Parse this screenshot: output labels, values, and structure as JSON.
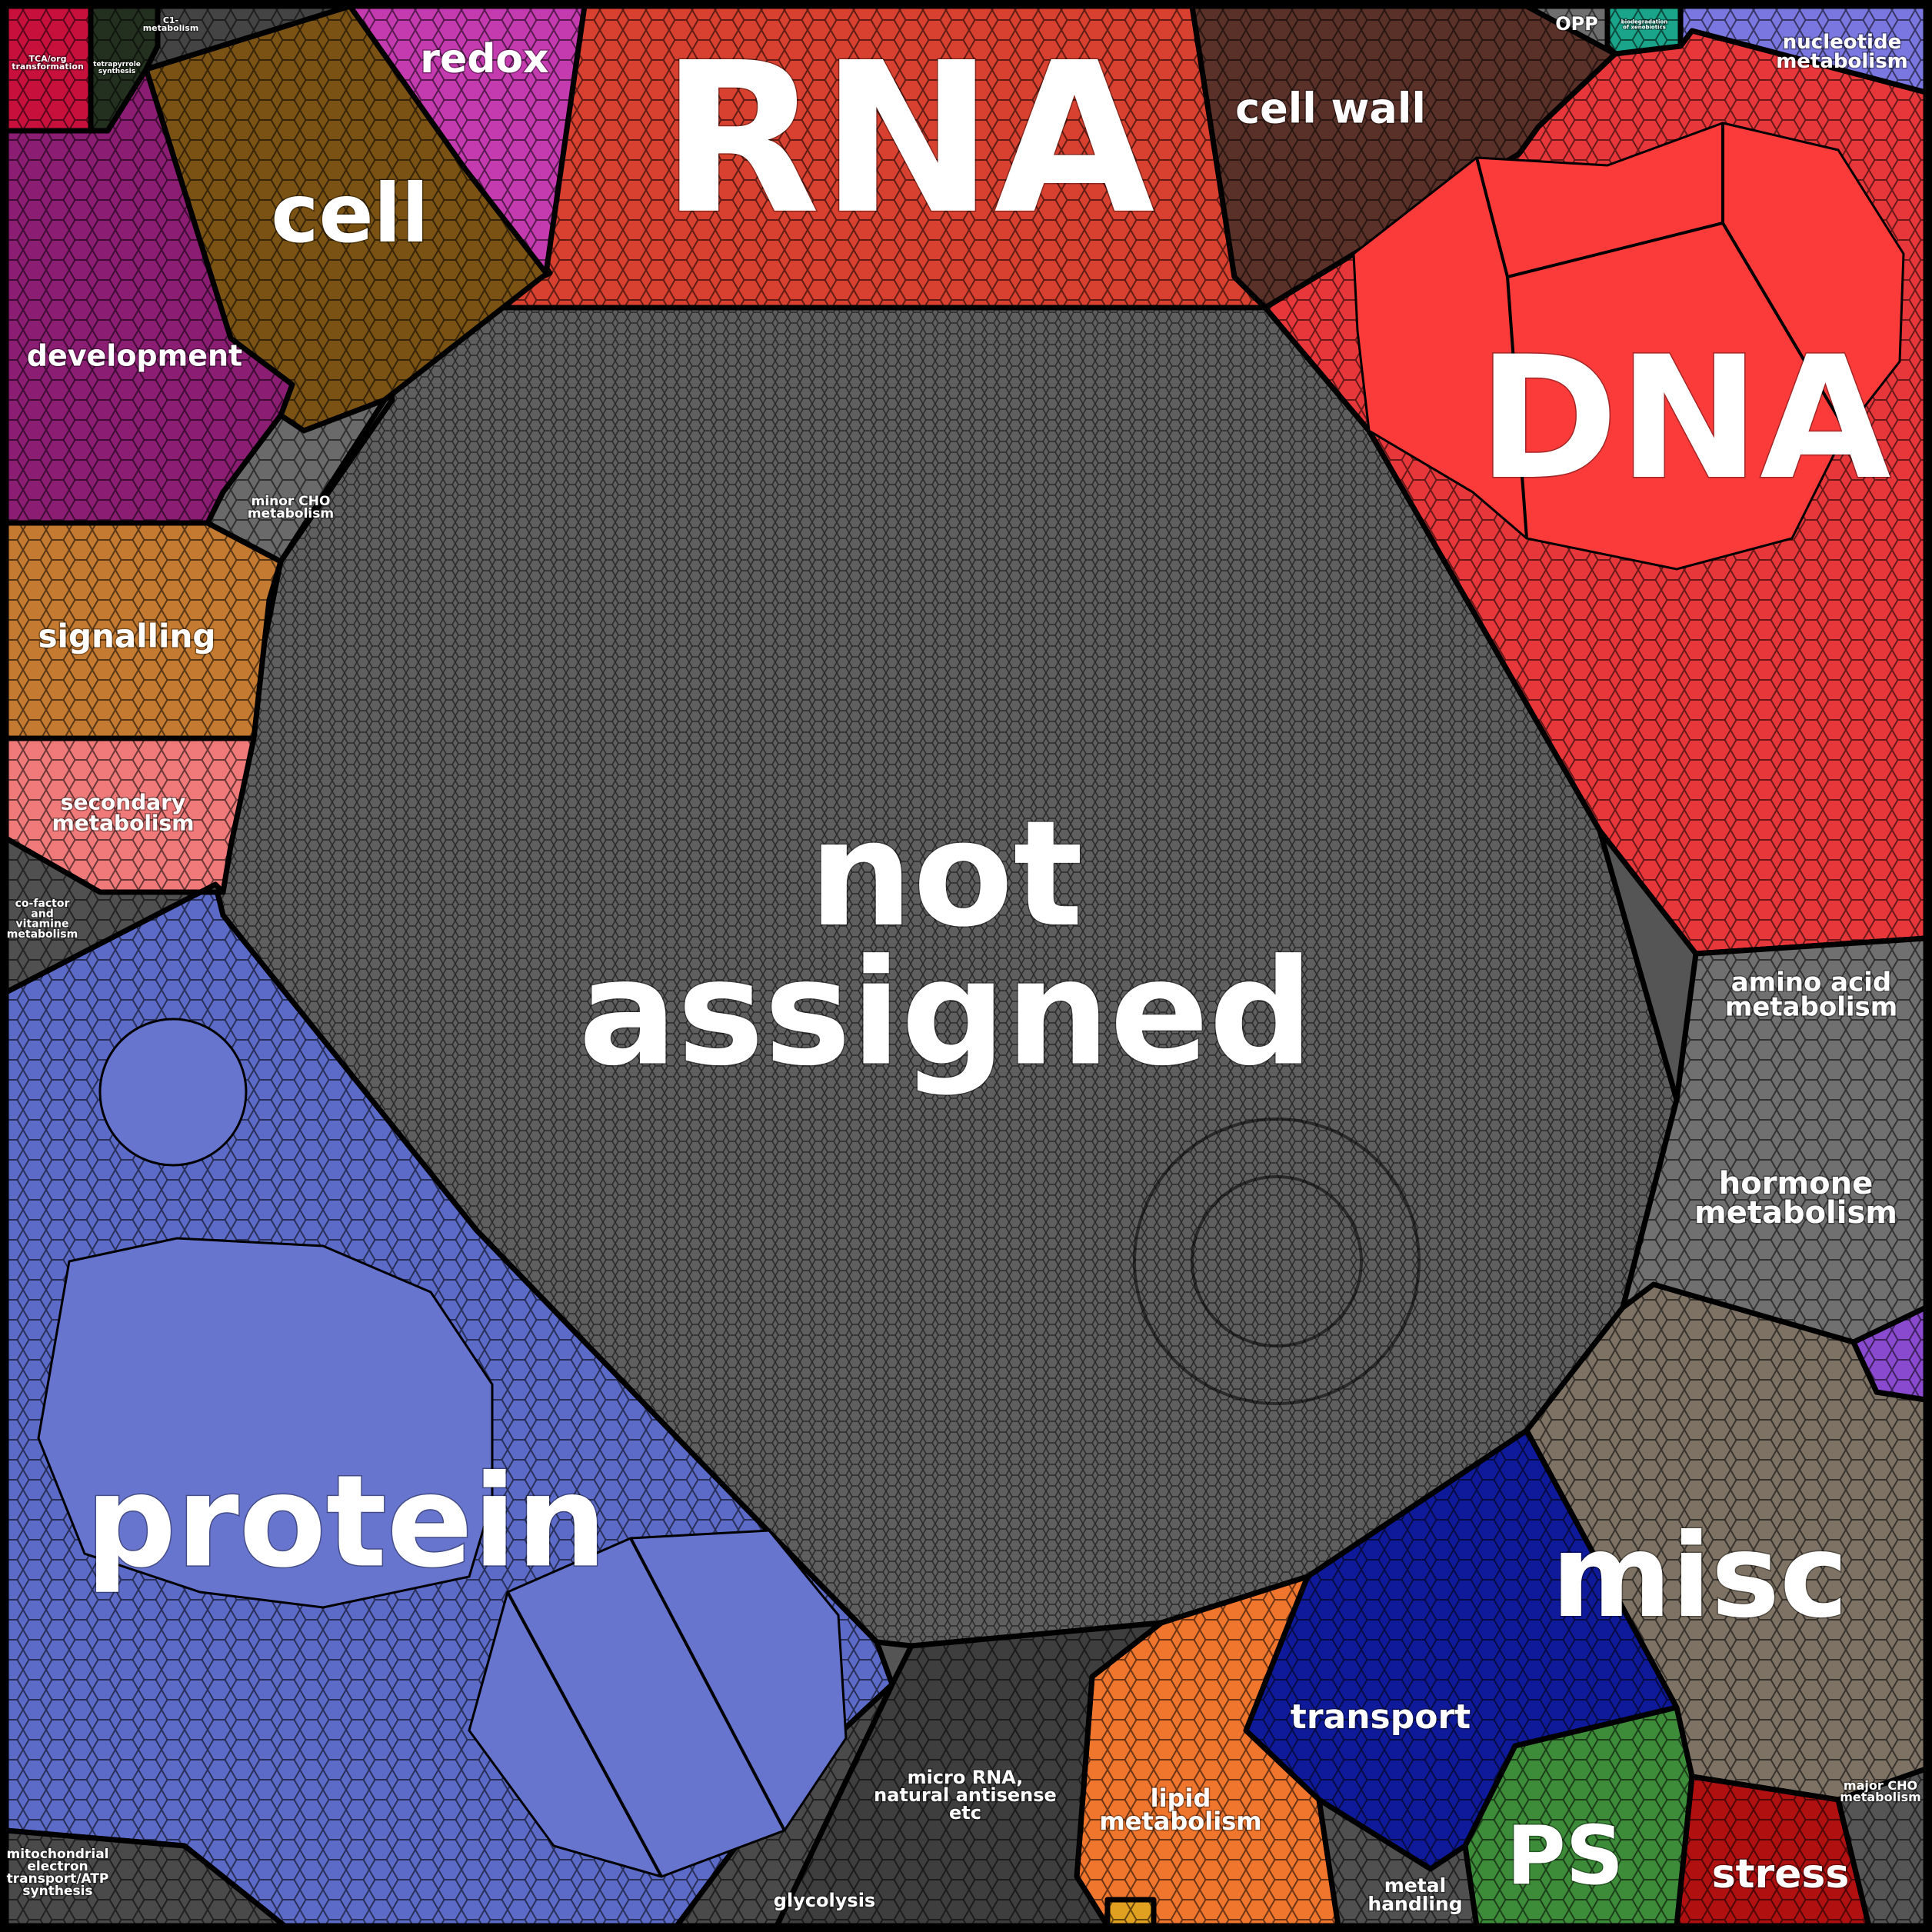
{
  "diagram": {
    "type": "voronoi-treemap",
    "categories": [
      {
        "id": "not-assigned",
        "lines": [
          "not",
          "assigned"
        ],
        "color": "#5f5f5f"
      },
      {
        "id": "rna",
        "lines": [
          "RNA"
        ],
        "color": "#d8402f"
      },
      {
        "id": "dna",
        "lines": [
          "DNA"
        ],
        "color": "#e8373a"
      },
      {
        "id": "protein",
        "lines": [
          "protein"
        ],
        "color": "#5c6bc8"
      },
      {
        "id": "misc",
        "lines": [
          "misc"
        ],
        "color": "#7d7263"
      },
      {
        "id": "cell",
        "lines": [
          "cell"
        ],
        "color": "#7a5213"
      },
      {
        "id": "cell-wall",
        "lines": [
          "cell wall"
        ],
        "color": "#5a3128"
      },
      {
        "id": "development",
        "lines": [
          "development"
        ],
        "color": "#8b1d73"
      },
      {
        "id": "redox",
        "lines": [
          "redox"
        ],
        "color": "#c43bb0"
      },
      {
        "id": "signalling",
        "lines": [
          "signalling"
        ],
        "color": "#c47a30"
      },
      {
        "id": "secondary-metabolism",
        "lines": [
          "secondary",
          "metabolism"
        ],
        "color": "#f07a7a"
      },
      {
        "id": "co-factor",
        "lines": [
          "co-factor",
          "and",
          "vitamine",
          "metabolism"
        ],
        "color": "#505050"
      },
      {
        "id": "minor-cho",
        "lines": [
          "minor CHO",
          "metabolism"
        ],
        "color": "#6a6a6a"
      },
      {
        "id": "tca",
        "lines": [
          "TCA/org",
          "transformation"
        ],
        "color": "#c8103c"
      },
      {
        "id": "tetrapyrrole",
        "lines": [
          "tetrapyrrole",
          "synthesis"
        ],
        "color": "#23301f"
      },
      {
        "id": "c1",
        "lines": [
          "C1-",
          "metabolism"
        ],
        "color": "#444444"
      },
      {
        "id": "opp",
        "lines": [
          "OPP"
        ],
        "color": "#6e6e6e"
      },
      {
        "id": "teal-small",
        "lines": [
          "biodegradation",
          "of xenobiotics"
        ],
        "color": "#1aa58a"
      },
      {
        "id": "nucleotide",
        "lines": [
          "nucleotide",
          "metabolism"
        ],
        "color": "#7a78e0"
      },
      {
        "id": "amino-acid",
        "lines": [
          "amino acid",
          "metabolism"
        ],
        "color": "#3a85e8"
      },
      {
        "id": "hormone",
        "lines": [
          "hormone",
          "metabolism"
        ],
        "color": "#707070"
      },
      {
        "id": "transport",
        "lines": [
          "transport"
        ],
        "color": "#0f1a9a"
      },
      {
        "id": "lipid",
        "lines": [
          "lipid",
          "metabolism"
        ],
        "color": "#f0762e"
      },
      {
        "id": "micro-rna",
        "lines": [
          "micro RNA,",
          "natural antisense",
          "etc"
        ],
        "color": "#3e3e3e"
      },
      {
        "id": "glycolysis",
        "lines": [
          "glycolysis"
        ],
        "color": "#4a4a4a"
      },
      {
        "id": "metal",
        "lines": [
          "metal",
          "handling"
        ],
        "color": "#505050"
      },
      {
        "id": "ps",
        "lines": [
          "PS"
        ],
        "color": "#3d8c3a"
      },
      {
        "id": "stress",
        "lines": [
          "stress"
        ],
        "color": "#b01010"
      },
      {
        "id": "major-cho",
        "lines": [
          "major CHO",
          "metabolism"
        ],
        "color": "#555555"
      },
      {
        "id": "mito",
        "lines": [
          "mitochondrial",
          "electron",
          "transport/ATP",
          "synthesis"
        ],
        "color": "#4a4a4a"
      },
      {
        "id": "purple-small",
        "lines": [],
        "color": "#8a4ad0"
      },
      {
        "id": "yellow-small",
        "lines": [],
        "color": "#e0a020"
      }
    ]
  }
}
